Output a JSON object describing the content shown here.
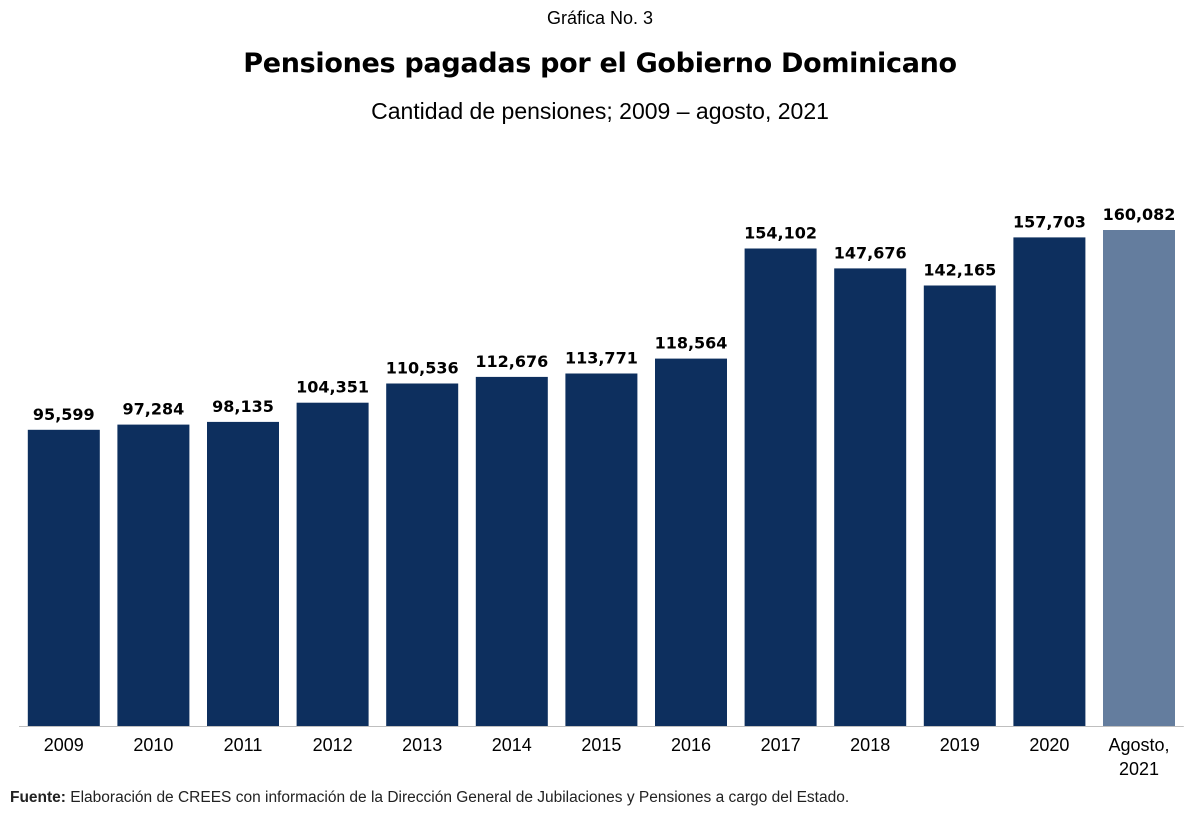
{
  "header": {
    "label": "Gráfica No. 3",
    "title": "Pensiones pagadas por el Gobierno Dominicano",
    "subtitle": "Cantidad de pensiones; 2009 – agosto, 2021"
  },
  "chart_data": {
    "type": "bar",
    "title": "Pensiones pagadas por el Gobierno Dominicano",
    "subtitle": "Cantidad de pensiones; 2009 – agosto, 2021",
    "xlabel": "",
    "ylabel": "",
    "categories": [
      "2009",
      "2010",
      "2011",
      "2012",
      "2013",
      "2014",
      "2015",
      "2016",
      "2017",
      "2018",
      "2019",
      "2020",
      "Agosto, 2021"
    ],
    "values": [
      95599,
      97284,
      98135,
      104351,
      110536,
      112676,
      113771,
      118564,
      154102,
      147676,
      142165,
      157703,
      160082
    ],
    "data_labels": [
      "95,599",
      "97,284",
      "98,135",
      "104,351",
      "110,536",
      "112,676",
      "113,771",
      "118,564",
      "154,102",
      "147,676",
      "142,165",
      "157,703",
      "160,082"
    ],
    "ylim": [
      0,
      160082
    ],
    "grid": false,
    "legend": "none",
    "colors": {
      "bar": "#0d2f5e",
      "highlight_bar": "#647d9e",
      "axis": "#bfbfbf"
    },
    "highlight_index": 12
  },
  "footer": {
    "source_label": "Fuente:",
    "source_text": " Elaboración de CREES con información de la Dirección General de Jubilaciones y Pensiones a cargo del Estado."
  }
}
